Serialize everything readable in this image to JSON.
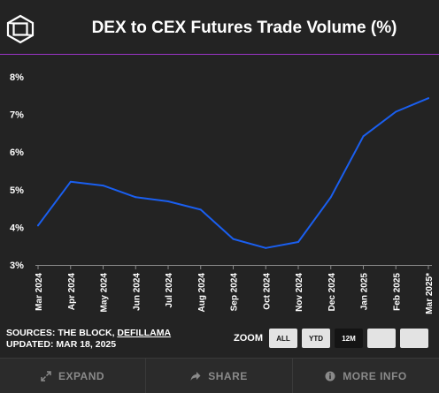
{
  "header": {
    "title": "DEX to CEX Futures Trade Volume (%)"
  },
  "chart_data": {
    "type": "line",
    "title": "DEX to CEX Futures Trade Volume (%)",
    "categories": [
      "Mar 2024",
      "Apr 2024",
      "May 2024",
      "Jun 2024",
      "Jul 2024",
      "Aug 2024",
      "Sep 2024",
      "Oct 2024",
      "Nov 2024",
      "Dec 2024",
      "Jan 2025",
      "Feb 2025",
      "Mar 2025*"
    ],
    "series": [
      {
        "values": [
          4.05,
          5.21,
          5.11,
          4.8,
          4.69,
          4.47,
          3.69,
          3.45,
          3.61,
          4.8,
          6.42,
          7.07,
          7.43
        ]
      }
    ],
    "yticks": [
      "3%",
      "4%",
      "5%",
      "6%",
      "7%",
      "8%"
    ],
    "ylim": [
      3,
      8.35
    ],
    "line_color": "#1a5ff0",
    "grid": false
  },
  "sources": {
    "prefix": "SOURCES: THE BLOCK, ",
    "link": "DEFILLAMA",
    "updated": "UPDATED: MAR 18, 2025"
  },
  "zoom": {
    "label": "ZOOM",
    "buttons": [
      "ALL",
      "YTD",
      "12M",
      "",
      ""
    ],
    "active": "12M"
  },
  "footer": {
    "expand": "EXPAND",
    "share": "SHARE",
    "more_info": "MORE INFO"
  }
}
